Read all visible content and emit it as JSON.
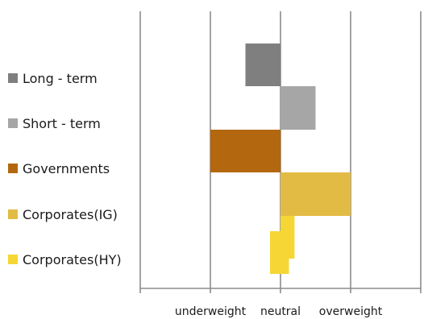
{
  "chart_data": {
    "type": "bar",
    "orientation": "horizontal",
    "title": "",
    "xlabel": "",
    "ylabel": "",
    "x_ticks": [
      {
        "value": -1,
        "label": "underweight"
      },
      {
        "value": 0,
        "label": "neutral"
      },
      {
        "value": 1,
        "label": "overweight"
      }
    ],
    "xlim": [
      -2,
      2
    ],
    "gridlines": true,
    "legend_position": "left",
    "series": [
      {
        "name": "Long - term",
        "color": "#7f7f7f",
        "start": -0.5,
        "end": 0
      },
      {
        "name": "Short - term",
        "color": "#a6a6a6",
        "start": 0,
        "end": 0.5
      },
      {
        "name": "Governments",
        "color": "#b3670f",
        "start": -1,
        "end": 0
      },
      {
        "name": "Corporates(IG)",
        "color": "#e2bb44",
        "start": 0,
        "end": 1
      },
      {
        "name": "Corporates(HY)",
        "color": "#f5d635",
        "start": -0.15,
        "end": 0.2
      }
    ]
  }
}
